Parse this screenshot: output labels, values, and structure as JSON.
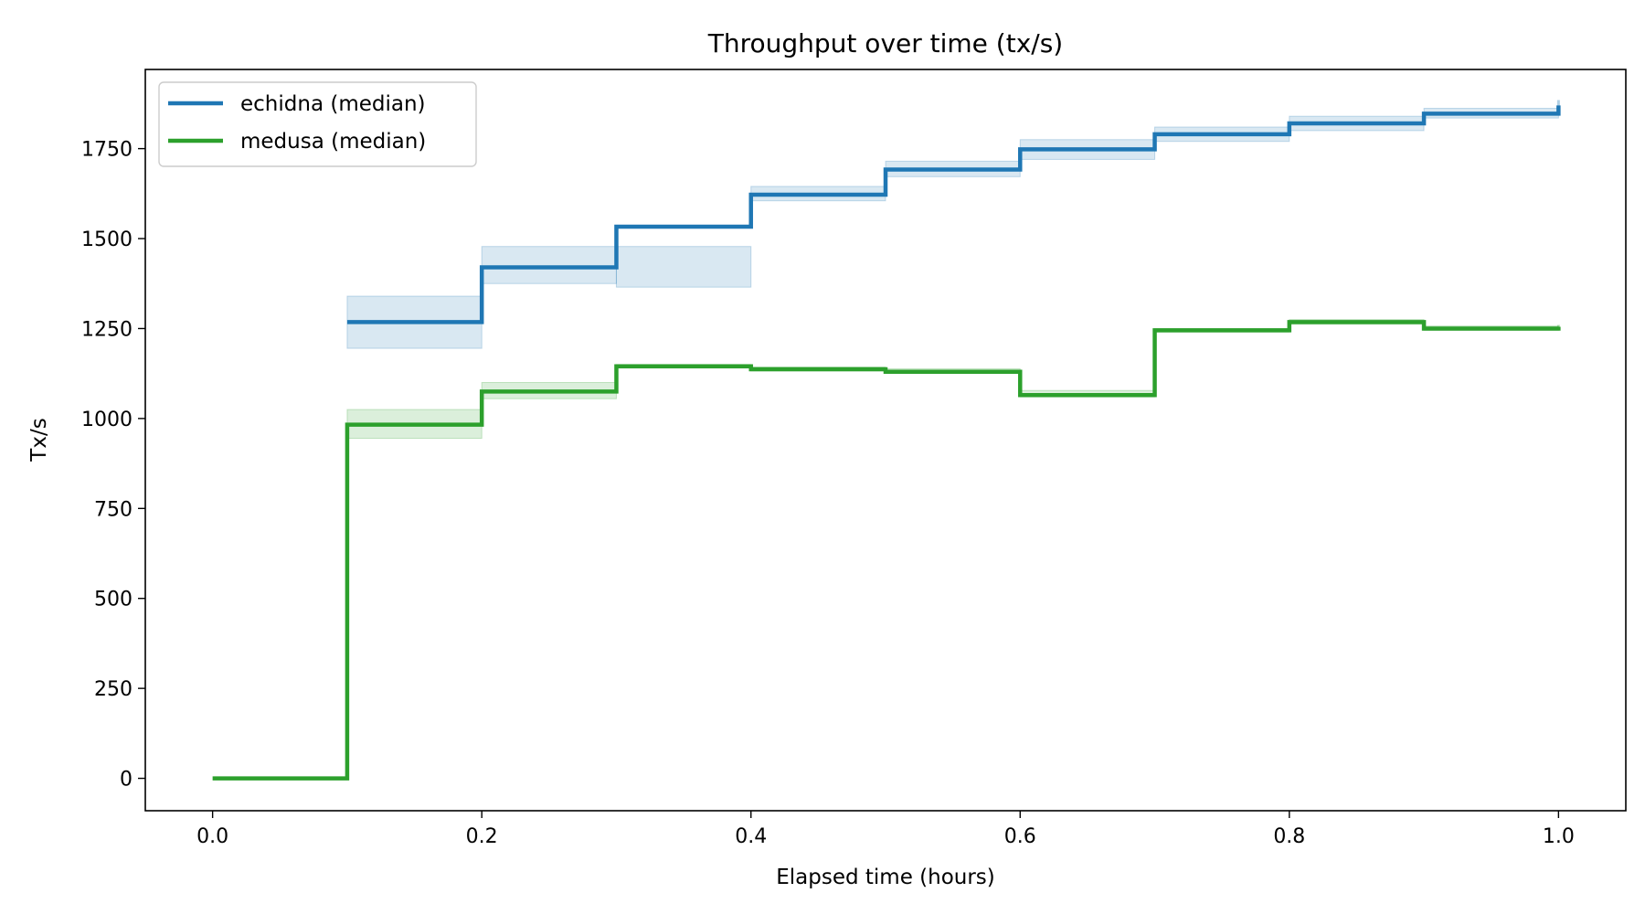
{
  "chart_data": {
    "type": "line",
    "step": "post",
    "title": "Throughput over time (tx/s)",
    "xlabel": "Elapsed time (hours)",
    "ylabel": "Tx/s",
    "xlim": [
      -0.05,
      1.05
    ],
    "ylim": [
      -90,
      1970
    ],
    "xticks": [
      0.0,
      0.2,
      0.4,
      0.6,
      0.8,
      1.0
    ],
    "xtick_labels": [
      "0.0",
      "0.2",
      "0.4",
      "0.6",
      "0.8",
      "1.0"
    ],
    "yticks": [
      0,
      250,
      500,
      750,
      1000,
      1250,
      1500,
      1750
    ],
    "ytick_labels": [
      "0",
      "250",
      "500",
      "750",
      "1000",
      "1250",
      "1500",
      "1750"
    ],
    "grid": false,
    "legend_position": "top-left",
    "series": [
      {
        "name": "echidna (median)",
        "color": "#1f77b4",
        "x": [
          0.1,
          0.2,
          0.3,
          0.4,
          0.5,
          0.6,
          0.7,
          0.8,
          0.9,
          1.0
        ],
        "y": [
          1268,
          1420,
          1533,
          1622,
          1692,
          1748,
          1790,
          1820,
          1847,
          1870
        ],
        "band_low": [
          1195,
          1375,
          1365,
          1605,
          1672,
          1720,
          1770,
          1800,
          1835,
          1850
        ],
        "band_high": [
          1340,
          1478,
          1478,
          1645,
          1715,
          1775,
          1810,
          1840,
          1862,
          1885
        ]
      },
      {
        "name": "medusa (median)",
        "color": "#2ca02c",
        "x": [
          0.0,
          0.1,
          0.2,
          0.3,
          0.4,
          0.5,
          0.6,
          0.7,
          0.8,
          0.9,
          1.0
        ],
        "y": [
          0,
          983,
          1075,
          1145,
          1137,
          1130,
          1065,
          1245,
          1268,
          1250,
          1255
        ],
        "band_low": [
          0,
          945,
          1055,
          1140,
          1132,
          1125,
          1060,
          1240,
          1262,
          1245,
          1250
        ],
        "band_high": [
          0,
          1025,
          1100,
          1150,
          1143,
          1138,
          1078,
          1250,
          1275,
          1257,
          1260
        ]
      }
    ]
  }
}
